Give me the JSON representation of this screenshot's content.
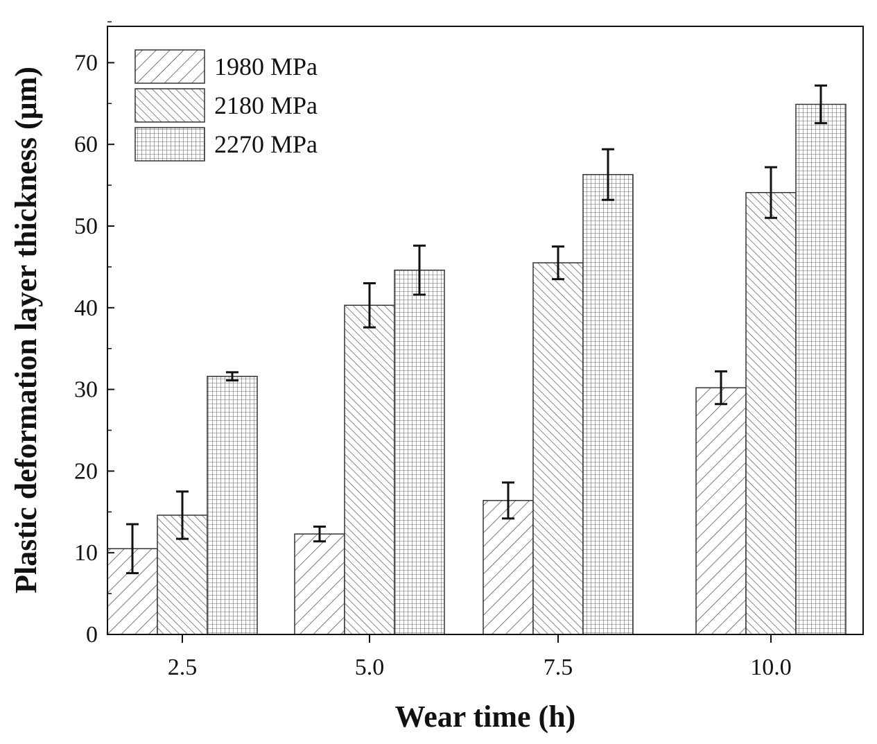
{
  "chart_data": {
    "type": "bar",
    "title": "",
    "xlabel": "Wear time (h)",
    "ylabel": "Plastic deformation layer thickness (μm)",
    "categories": [
      "2.5",
      "5.0",
      "7.5",
      "10.0"
    ],
    "ylim": [
      0,
      75
    ],
    "yticks": [
      0,
      10,
      20,
      30,
      40,
      50,
      60,
      70
    ],
    "ytick_labels": [
      "0",
      "10",
      "20",
      "30",
      "40",
      "50",
      "60",
      "70"
    ],
    "legend_position": "top-left",
    "series": [
      {
        "name": "1980 MPa",
        "pattern": "diagonal",
        "values": [
          10.5,
          12.3,
          16.4,
          30.2
        ],
        "errors": [
          3.0,
          0.9,
          2.2,
          2.0
        ]
      },
      {
        "name": "2180 MPa",
        "pattern": "back-diagonal",
        "values": [
          14.6,
          40.3,
          45.5,
          54.1
        ],
        "errors": [
          2.9,
          2.7,
          2.0,
          3.1
        ]
      },
      {
        "name": "2270 MPa",
        "pattern": "grid",
        "values": [
          31.6,
          44.6,
          56.3,
          64.9
        ],
        "errors": [
          0.5,
          3.0,
          3.1,
          2.3
        ]
      }
    ],
    "colors": {
      "bar_stroke": "#333333",
      "pattern": "#555555",
      "axis": "#111111",
      "background": "#ffffff"
    }
  }
}
